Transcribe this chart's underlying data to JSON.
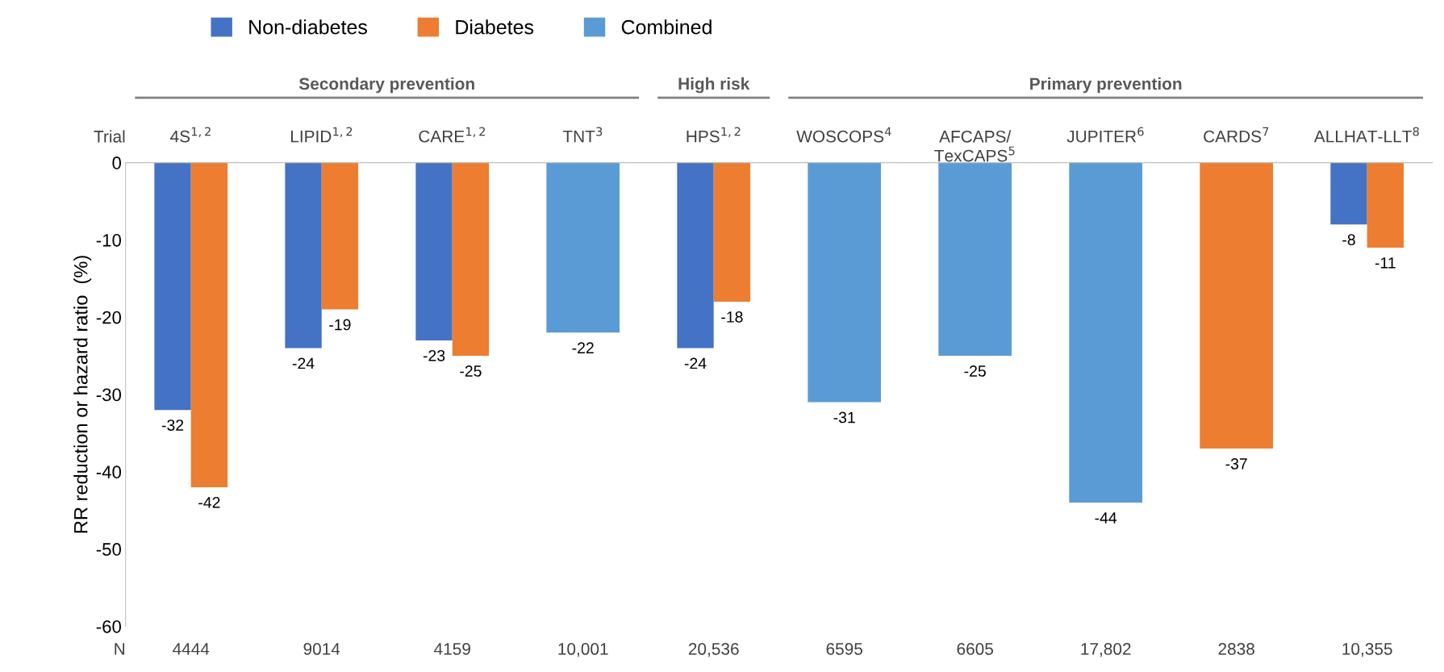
{
  "chart_data": {
    "type": "bar",
    "ylabel": "RR reduction or hazard ratio  (%)",
    "categories": [
      "4S$^{1,2}$",
      "LIPID$^{1,2}$",
      "CARE$^{1,2}$",
      "TNT$^{3}$",
      "HPS$^{1,2}$",
      "WOSCOPS$^{4}$",
      "AFCAPS/\nTexCAPS$^{5}$",
      "JUPITER$^{6}$",
      "CARDS$^{7}$",
      "ALLHAT-LLT$^{8}$"
    ],
    "series": [
      {
        "name": "Non-diabetes",
        "color": "#4472c4",
        "values": [
          -32,
          -24,
          -23,
          null,
          -24,
          null,
          null,
          null,
          null,
          -8
        ]
      },
      {
        "name": "Diabetes",
        "color": "#ed7d31",
        "values": [
          -42,
          -19,
          -25,
          null,
          -18,
          null,
          null,
          null,
          -37,
          -11
        ]
      },
      {
        "name": "Combined",
        "color": "#5b9bd5",
        "values": [
          null,
          null,
          null,
          -22,
          null,
          -31,
          -25,
          -44,
          null,
          null
        ]
      }
    ],
    "ylim": [
      -60,
      0
    ],
    "yticks": [
      -60,
      -50,
      -40,
      -30,
      -20,
      -10,
      0
    ],
    "grid": false,
    "legend": "top",
    "data_labels": true,
    "annotations": [
      "Trial",
      "Secondary prevention",
      "High risk",
      "Primary prevention",
      "N",
      "4444",
      "9014",
      "4159",
      "10,001",
      "20,536",
      "6595",
      "6605",
      "17,802",
      "2838",
      "10,355"
    ]
  }
}
